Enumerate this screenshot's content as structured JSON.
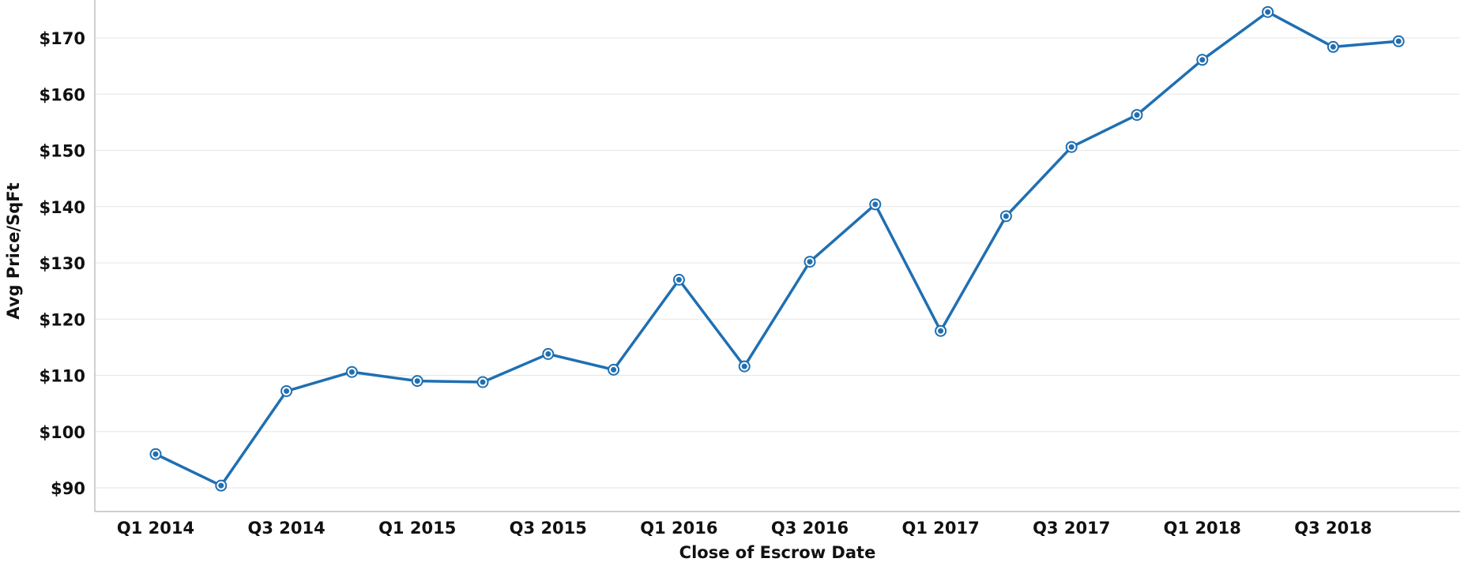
{
  "chart_data": {
    "type": "line",
    "title": "",
    "xlabel": "Close of Escrow Date",
    "ylabel": "Avg Price/SqFt",
    "ylim": [
      85,
      175
    ],
    "yticks": [
      90,
      100,
      110,
      120,
      130,
      140,
      150,
      160,
      170
    ],
    "ytick_labels": [
      "$90",
      "$100",
      "$110",
      "$120",
      "$130",
      "$140",
      "$150",
      "$160",
      "$170"
    ],
    "xtick_labels": [
      "Q1 2014",
      "Q3 2014",
      "Q1 2015",
      "Q3 2015",
      "Q1 2016",
      "Q3 2016",
      "Q1 2017",
      "Q3 2017",
      "Q1 2018",
      "Q3 2018"
    ],
    "grid": true,
    "legend": "none",
    "series": [
      {
        "color": "#1f6fb2",
        "categories": [
          "Q1 2014",
          "Q2 2014",
          "Q3 2014",
          "Q4 2014",
          "Q1 2015",
          "Q2 2015",
          "Q3 2015",
          "Q4 2015",
          "Q1 2016",
          "Q2 2016",
          "Q3 2016",
          "Q4 2016",
          "Q1 2017",
          "Q2 2017",
          "Q3 2017",
          "Q4 2017",
          "Q1 2018",
          "Q2 2018",
          "Q3 2018",
          "Q4 2018"
        ],
        "values": [
          96.0,
          90.4,
          107.2,
          110.6,
          109.0,
          108.8,
          113.8,
          111.0,
          127.0,
          111.6,
          130.2,
          140.4,
          117.9,
          138.3,
          150.6,
          156.3,
          166.1,
          174.6,
          168.4,
          169.4
        ]
      }
    ]
  }
}
